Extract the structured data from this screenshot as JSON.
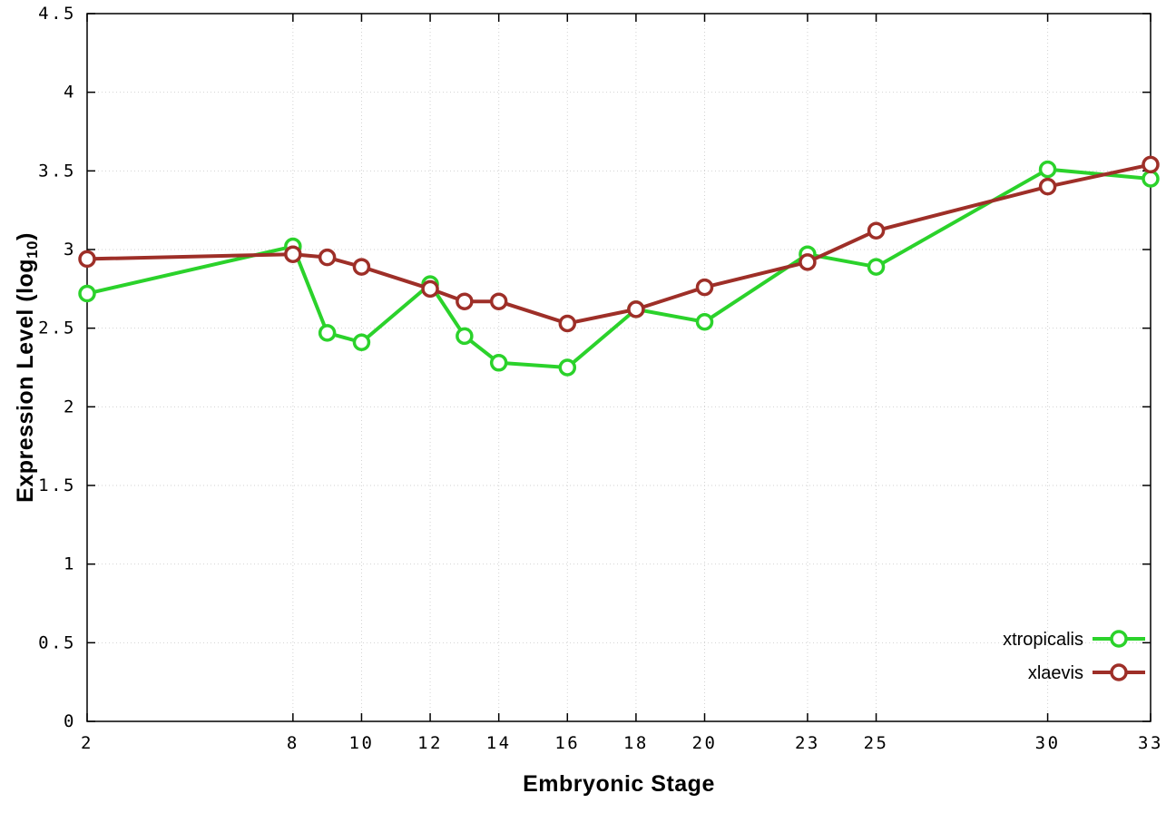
{
  "chart_data": {
    "type": "line",
    "x": [
      2,
      8,
      9,
      10,
      12,
      13,
      14,
      16,
      18,
      20,
      23,
      25,
      30,
      33
    ],
    "series": [
      {
        "name": "xtropicalis",
        "color": "#2bd22b",
        "values": [
          2.72,
          3.02,
          2.47,
          2.41,
          2.78,
          2.45,
          2.28,
          2.25,
          2.62,
          2.54,
          2.97,
          2.89,
          3.51,
          3.45
        ]
      },
      {
        "name": "xlaevis",
        "color": "#9e2f28",
        "values": [
          2.94,
          2.97,
          2.95,
          2.89,
          2.75,
          2.67,
          2.67,
          2.53,
          2.62,
          2.76,
          2.92,
          3.12,
          3.4,
          3.54
        ]
      }
    ],
    "title": "",
    "xlabel": "Embryonic Stage",
    "ylabel": "Expression Level (log10)",
    "xlim": [
      2,
      33
    ],
    "ylim": [
      0,
      4.5
    ],
    "xticks": [
      2,
      8,
      10,
      12,
      14,
      16,
      18,
      20,
      23,
      25,
      30,
      33
    ],
    "xtick_labels": [
      "2",
      "8",
      "10",
      "12",
      "14",
      "16",
      "18",
      "20",
      "23",
      "25",
      "30",
      "33"
    ],
    "yticks": [
      0,
      0.5,
      1,
      1.5,
      2,
      2.5,
      3,
      3.5,
      4,
      4.5
    ],
    "ytick_labels": [
      "0",
      "0.5",
      "1",
      "1.5",
      "2",
      "2.5",
      "3",
      "3.5",
      "4",
      "4.5"
    ],
    "grid": true,
    "grid_color": "#d2d2d2",
    "border_color": "#000000",
    "marker": "open-circle",
    "legend_position": "bottom-right"
  },
  "axes": {
    "xlabel": "Embryonic Stage",
    "ylabel_prefix": "Expression Level (log",
    "ylabel_sub": "10",
    "ylabel_suffix": ")"
  },
  "legend": {
    "entries": [
      {
        "label": "xtropicalis",
        "color": "#2bd22b"
      },
      {
        "label": "xlaevis",
        "color": "#9e2f28"
      }
    ]
  }
}
